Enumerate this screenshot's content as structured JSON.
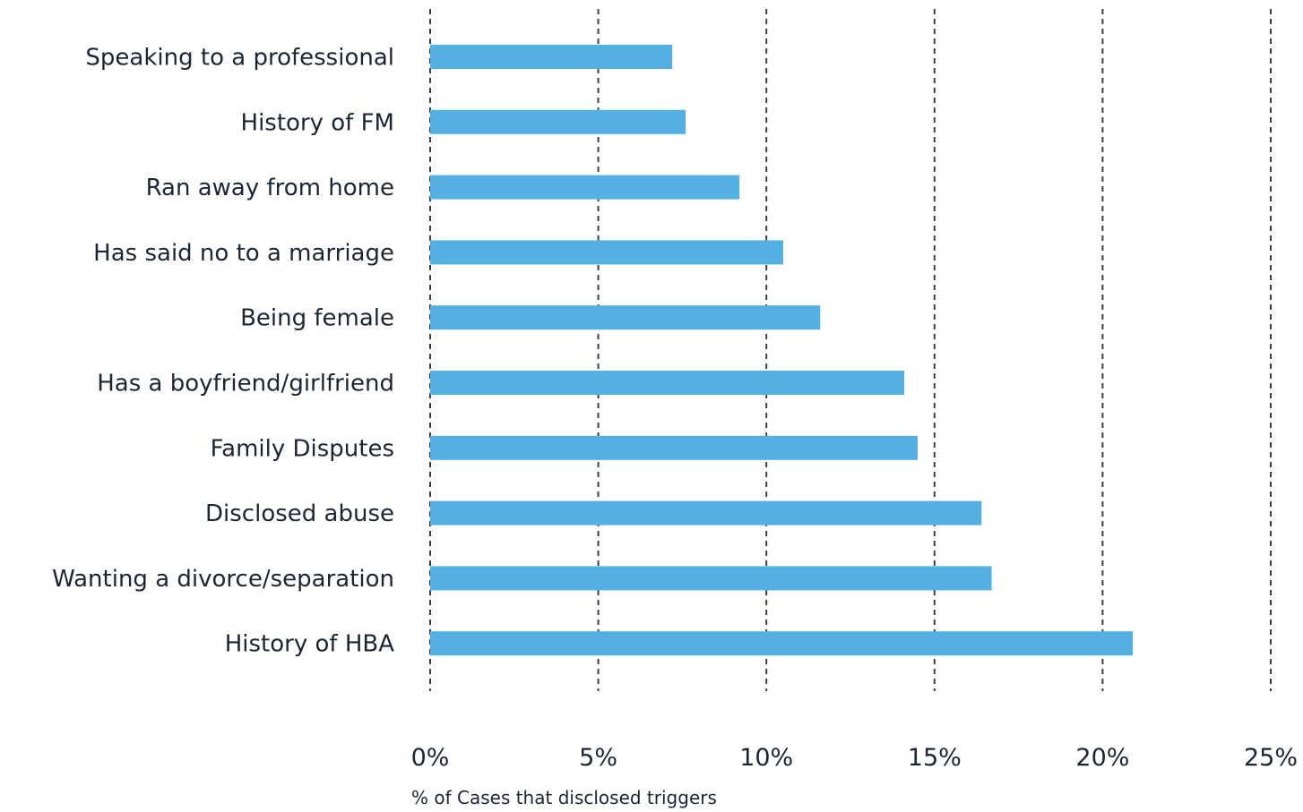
{
  "chart_data": {
    "type": "bar",
    "orientation": "horizontal",
    "categories": [
      "Speaking to a professional",
      "History of FM",
      "Ran away from home",
      "Has said no to a marriage",
      "Being female",
      "Has a boyfriend/girlfriend",
      "Family Disputes",
      "Disclosed abuse",
      "Wanting a divorce/separation",
      "History of HBA"
    ],
    "values": [
      7.2,
      7.6,
      9.2,
      10.5,
      11.6,
      14.1,
      14.5,
      16.4,
      16.7,
      20.9
    ],
    "xlabel": "% of Cases that disclosed triggers",
    "xticks": [
      "0%",
      "5%",
      "10%",
      "15%",
      "20%",
      "25%"
    ],
    "xlim": [
      0,
      25
    ],
    "grid": "vertical dashed",
    "bar_color": "#53b0e1",
    "grid_color": "#3a3f47",
    "text_color": "#1c2633"
  }
}
